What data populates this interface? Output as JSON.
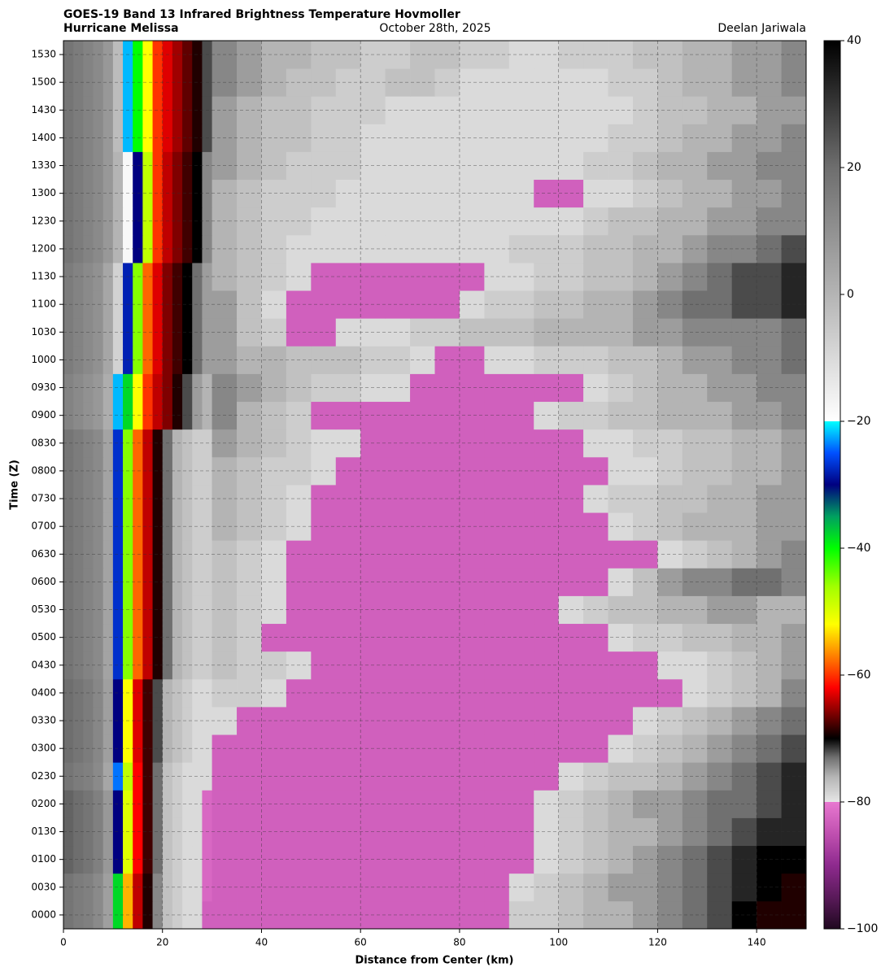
{
  "chart_data": {
    "type": "heatmap",
    "title": "GOES-19 Band 13 Infrared Brightness Temperature Hovmoller",
    "subtitle": "Hurricane Melissa",
    "date": "October 28th, 2025",
    "author": "Deelan Jariwala",
    "xlabel": "Distance from Center (km)",
    "ylabel": "Time (Z)",
    "categories": [
      "0000",
      "0030",
      "0100",
      "0130",
      "0200",
      "0230",
      "0300",
      "0330",
      "0400",
      "0430",
      "0500",
      "0530",
      "0600",
      "0630",
      "0700",
      "0730",
      "0800",
      "0830",
      "0900",
      "0930",
      "1000",
      "1030",
      "1100",
      "1130",
      "1200",
      "1230",
      "1300",
      "1330",
      "1400",
      "1430",
      "1500",
      "1530"
    ],
    "x_edges": [
      0,
      2,
      4,
      6,
      8,
      10,
      12,
      14,
      16,
      18,
      20,
      22,
      24,
      26,
      28,
      30,
      35,
      40,
      45,
      50,
      55,
      60,
      65,
      70,
      75,
      80,
      85,
      90,
      95,
      100,
      105,
      110,
      115,
      120,
      125,
      130,
      135,
      140,
      145,
      150
    ],
    "xlim": [
      0,
      150
    ],
    "xticks": [
      0,
      20,
      40,
      60,
      80,
      100,
      120,
      140
    ],
    "grid": true,
    "z": [
      [
        18,
        16,
        15,
        12,
        6,
        -38,
        -55,
        -64,
        -69,
        -74,
        -77,
        -78,
        -79,
        -79,
        -83,
        -83,
        -83,
        -83,
        -83,
        -83,
        -83,
        -83,
        -83,
        -83,
        -83,
        -83,
        -83,
        -78,
        -78,
        -77,
        -76,
        -76,
        -75,
        -74,
        -73,
        -72,
        -70,
        -69,
        -69
      ],
      [
        18,
        16,
        15,
        12,
        6,
        -38,
        -55,
        -64,
        -69,
        -74,
        -77,
        -78,
        -79,
        -79,
        -82,
        -83,
        -83,
        -83,
        -83,
        -83,
        -83,
        -83,
        -83,
        -83,
        -83,
        -83,
        -83,
        -79,
        -78,
        -77,
        -76,
        -75,
        -75,
        -74,
        -73,
        -72,
        -71,
        -70,
        -69
      ],
      [
        22,
        20,
        18,
        15,
        8,
        -30,
        -50,
        -62,
        -68,
        -73,
        -77,
        -78,
        -79,
        -79,
        -82,
        -83,
        -83,
        -83,
        -83,
        -83,
        -83,
        -83,
        -83,
        -83,
        -83,
        -83,
        -83,
        -83,
        -79,
        -78,
        -77,
        -76,
        -75,
        -74,
        -73,
        -72,
        -71,
        -70,
        -70
      ],
      [
        22,
        20,
        18,
        15,
        8,
        -30,
        -50,
        -62,
        -68,
        -73,
        -77,
        -78,
        -79,
        -79,
        -82,
        -83,
        -83,
        -83,
        -83,
        -83,
        -83,
        -83,
        -83,
        -83,
        -83,
        -83,
        -83,
        -83,
        -79,
        -78,
        -77,
        -76,
        -76,
        -75,
        -74,
        -73,
        -72,
        -71,
        -71
      ],
      [
        22,
        20,
        18,
        15,
        8,
        -30,
        -50,
        -62,
        -68,
        -73,
        -77,
        -78,
        -79,
        -79,
        -82,
        -83,
        -83,
        -83,
        -83,
        -83,
        -83,
        -83,
        -83,
        -83,
        -83,
        -83,
        -83,
        -83,
        -79,
        -78,
        -77,
        -76,
        -75,
        -75,
        -74,
        -73,
        -73,
        -72,
        -71
      ],
      [
        18,
        16,
        15,
        12,
        4,
        -24,
        -48,
        -62,
        -68,
        -73,
        -77,
        -78,
        -79,
        -79,
        -79,
        -83,
        -83,
        -83,
        -83,
        -83,
        -83,
        -83,
        -83,
        -83,
        -83,
        -83,
        -83,
        -83,
        -83,
        -79,
        -78,
        -77,
        -77,
        -76,
        -75,
        -74,
        -73,
        -72,
        -71
      ],
      [
        20,
        18,
        16,
        13,
        6,
        -30,
        -52,
        -63,
        -68,
        -72,
        -76,
        -77,
        -78,
        -79,
        -79,
        -83,
        -83,
        -83,
        -83,
        -83,
        -83,
        -83,
        -83,
        -83,
        -83,
        -83,
        -83,
        -83,
        -83,
        -83,
        -83,
        -79,
        -78,
        -77,
        -76,
        -75,
        -74,
        -73,
        -72
      ],
      [
        20,
        18,
        16,
        13,
        6,
        -30,
        -52,
        -63,
        -68,
        -72,
        -76,
        -77,
        -78,
        -79,
        -79,
        -79,
        -83,
        -83,
        -83,
        -83,
        -83,
        -83,
        -83,
        -83,
        -83,
        -83,
        -83,
        -83,
        -83,
        -83,
        -83,
        -83,
        -79,
        -78,
        -77,
        -76,
        -75,
        -74,
        -73
      ],
      [
        20,
        18,
        16,
        13,
        6,
        -30,
        -52,
        -63,
        -68,
        -72,
        -76,
        -77,
        -78,
        -79,
        -79,
        -78,
        -78,
        -79,
        -83,
        -83,
        -83,
        -83,
        -83,
        -83,
        -83,
        -83,
        -83,
        -83,
        -83,
        -83,
        -83,
        -83,
        -83,
        -83,
        -79,
        -78,
        -77,
        -76,
        -74
      ],
      [
        18,
        16,
        14,
        12,
        5,
        -27,
        -45,
        -58,
        -64,
        -69,
        -73,
        -76,
        -77,
        -78,
        -78,
        -77,
        -78,
        -78,
        -79,
        -83,
        -83,
        -83,
        -83,
        -83,
        -83,
        -83,
        -83,
        -83,
        -83,
        -83,
        -83,
        -83,
        -83,
        -79,
        -79,
        -78,
        -77,
        -76,
        -75
      ],
      [
        18,
        16,
        14,
        12,
        5,
        -27,
        -45,
        -58,
        -64,
        -69,
        -73,
        -76,
        -77,
        -78,
        -78,
        -77,
        -78,
        -83,
        -83,
        -83,
        -83,
        -83,
        -83,
        -83,
        -83,
        -83,
        -83,
        -83,
        -83,
        -83,
        -83,
        -79,
        -78,
        -78,
        -77,
        -77,
        -76,
        -76,
        -75
      ],
      [
        18,
        16,
        14,
        12,
        5,
        -27,
        -45,
        -58,
        -64,
        -69,
        -73,
        -76,
        -77,
        -78,
        -78,
        -77,
        -78,
        -79,
        -83,
        -83,
        -83,
        -83,
        -83,
        -83,
        -83,
        -83,
        -83,
        -83,
        -83,
        -79,
        -78,
        -77,
        -77,
        -76,
        -76,
        -75,
        -75,
        -76,
        -76
      ],
      [
        18,
        16,
        14,
        12,
        5,
        -27,
        -45,
        -58,
        -64,
        -69,
        -73,
        -76,
        -77,
        -78,
        -78,
        -77,
        -78,
        -79,
        -83,
        -83,
        -83,
        -83,
        -83,
        -83,
        -83,
        -83,
        -83,
        -83,
        -83,
        -83,
        -83,
        -79,
        -77,
        -75,
        -74,
        -74,
        -73,
        -73,
        -74
      ],
      [
        18,
        16,
        14,
        12,
        5,
        -27,
        -45,
        -58,
        -64,
        -69,
        -73,
        -76,
        -77,
        -78,
        -78,
        -77,
        -78,
        -79,
        -83,
        -83,
        -83,
        -83,
        -83,
        -83,
        -83,
        -83,
        -83,
        -83,
        -83,
        -83,
        -83,
        -83,
        -83,
        -79,
        -78,
        -77,
        -76,
        -75,
        -74
      ],
      [
        18,
        16,
        14,
        12,
        5,
        -27,
        -45,
        -58,
        -64,
        -69,
        -73,
        -76,
        -77,
        -78,
        -78,
        -76,
        -77,
        -78,
        -79,
        -83,
        -83,
        -83,
        -83,
        -83,
        -83,
        -83,
        -83,
        -83,
        -83,
        -83,
        -83,
        -79,
        -78,
        -77,
        -76,
        -76,
        -76,
        -75,
        -75
      ],
      [
        18,
        16,
        14,
        12,
        5,
        -27,
        -45,
        -58,
        -64,
        -69,
        -73,
        -76,
        -77,
        -78,
        -78,
        -76,
        -77,
        -78,
        -79,
        -83,
        -83,
        -83,
        -83,
        -83,
        -83,
        -83,
        -83,
        -83,
        -83,
        -83,
        -79,
        -78,
        -78,
        -77,
        -77,
        -76,
        -76,
        -75,
        -75
      ],
      [
        18,
        16,
        14,
        12,
        5,
        -27,
        -45,
        -58,
        -64,
        -69,
        -73,
        -76,
        -77,
        -78,
        -78,
        -76,
        -77,
        -78,
        -78,
        -79,
        -83,
        -83,
        -83,
        -83,
        -83,
        -83,
        -83,
        -83,
        -83,
        -83,
        -83,
        -79,
        -79,
        -78,
        -77,
        -77,
        -76,
        -76,
        -75
      ],
      [
        18,
        16,
        14,
        12,
        5,
        -27,
        -45,
        -58,
        -64,
        -69,
        -73,
        -76,
        -77,
        -78,
        -78,
        -75,
        -76,
        -77,
        -78,
        -79,
        -79,
        -83,
        -83,
        -83,
        -83,
        -83,
        -83,
        -83,
        -83,
        -83,
        -79,
        -79,
        -78,
        -78,
        -77,
        -77,
        -76,
        -76,
        -75
      ],
      [
        14,
        12,
        10,
        8,
        2,
        -22,
        -38,
        -52,
        -60,
        -64,
        -66,
        -69,
        -72,
        -75,
        -76,
        -74,
        -76,
        -77,
        -78,
        -83,
        -83,
        -83,
        -83,
        -83,
        -83,
        -83,
        -83,
        -83,
        -79,
        -78,
        -78,
        -77,
        -77,
        -76,
        -76,
        -76,
        -75,
        -75,
        -74
      ],
      [
        14,
        12,
        10,
        8,
        2,
        -22,
        -38,
        -52,
        -60,
        -64,
        -66,
        -69,
        -72,
        -75,
        -76,
        -74,
        -75,
        -76,
        -77,
        -78,
        -78,
        -79,
        -79,
        -83,
        -83,
        -83,
        -83,
        -83,
        -83,
        -83,
        -79,
        -78,
        -77,
        -76,
        -76,
        -75,
        -75,
        -74,
        -74
      ],
      [
        16,
        14,
        12,
        10,
        4,
        -8,
        -28,
        -45,
        -58,
        -63,
        -66,
        -68,
        -70,
        -73,
        -75,
        -75,
        -76,
        -76,
        -77,
        -77,
        -77,
        -78,
        -78,
        -79,
        -83,
        -83,
        -79,
        -79,
        -78,
        -78,
        -78,
        -77,
        -77,
        -76,
        -75,
        -75,
        -74,
        -74,
        -73
      ],
      [
        16,
        14,
        12,
        10,
        4,
        -8,
        -28,
        -45,
        -58,
        -63,
        -66,
        -68,
        -70,
        -73,
        -75,
        -75,
        -77,
        -78,
        -83,
        -83,
        -79,
        -79,
        -79,
        -78,
        -78,
        -77,
        -77,
        -77,
        -76,
        -76,
        -76,
        -76,
        -75,
        -75,
        -74,
        -74,
        -74,
        -74,
        -73
      ],
      [
        16,
        14,
        12,
        10,
        4,
        -8,
        -28,
        -45,
        -58,
        -63,
        -66,
        -68,
        -70,
        -73,
        -75,
        -75,
        -77,
        -79,
        -83,
        -83,
        -83,
        -83,
        -83,
        -83,
        -83,
        -79,
        -78,
        -78,
        -77,
        -77,
        -76,
        -76,
        -75,
        -74,
        -73,
        -73,
        -72,
        -72,
        -71
      ],
      [
        16,
        14,
        12,
        10,
        4,
        -8,
        -28,
        -45,
        -58,
        -63,
        -66,
        -68,
        -70,
        -73,
        -75,
        -76,
        -77,
        -78,
        -79,
        -83,
        -83,
        -83,
        -83,
        -83,
        -83,
        -83,
        -79,
        -79,
        -78,
        -78,
        -77,
        -77,
        -76,
        -75,
        -74,
        -73,
        -72,
        -72,
        -71
      ],
      [
        18,
        16,
        14,
        12,
        8,
        0,
        -18,
        -30,
        -48,
        -60,
        -64,
        -66,
        -68,
        -70,
        -74,
        -76,
        -77,
        -78,
        -79,
        -79,
        -79,
        -79,
        -79,
        -79,
        -79,
        -79,
        -79,
        -78,
        -78,
        -78,
        -77,
        -77,
        -76,
        -76,
        -75,
        -74,
        -74,
        -73,
        -72
      ],
      [
        18,
        16,
        14,
        12,
        8,
        0,
        -18,
        -30,
        -48,
        -60,
        -64,
        -66,
        -68,
        -70,
        -74,
        -76,
        -77,
        -78,
        -78,
        -79,
        -79,
        -79,
        -79,
        -79,
        -79,
        -79,
        -79,
        -79,
        -79,
        -79,
        -78,
        -77,
        -77,
        -76,
        -76,
        -75,
        -75,
        -74,
        -74
      ],
      [
        18,
        16,
        14,
        12,
        8,
        0,
        -18,
        -30,
        -48,
        -60,
        -64,
        -66,
        -68,
        -70,
        -74,
        -76,
        -77,
        -78,
        -78,
        -78,
        -79,
        -79,
        -79,
        -79,
        -79,
        -79,
        -79,
        -79,
        -83,
        -83,
        -79,
        -79,
        -78,
        -77,
        -76,
        -76,
        -75,
        -75,
        -74
      ],
      [
        18,
        16,
        14,
        12,
        8,
        0,
        -18,
        -30,
        -48,
        -60,
        -64,
        -66,
        -68,
        -70,
        -74,
        -75,
        -76,
        -77,
        -78,
        -78,
        -78,
        -79,
        -79,
        -79,
        -79,
        -79,
        -79,
        -79,
        -79,
        -79,
        -78,
        -78,
        -77,
        -76,
        -76,
        -75,
        -75,
        -74,
        -74
      ],
      [
        18,
        16,
        14,
        12,
        8,
        -2,
        -22,
        -40,
        -52,
        -60,
        -63,
        -65,
        -67,
        -69,
        -72,
        -75,
        -76,
        -77,
        -77,
        -78,
        -78,
        -79,
        -79,
        -79,
        -79,
        -79,
        -79,
        -79,
        -79,
        -79,
        -79,
        -78,
        -78,
        -77,
        -76,
        -76,
        -75,
        -75,
        -74
      ],
      [
        18,
        16,
        14,
        12,
        8,
        -2,
        -22,
        -40,
        -52,
        -60,
        -63,
        -65,
        -67,
        -69,
        -72,
        -75,
        -76,
        -77,
        -77,
        -78,
        -78,
        -78,
        -79,
        -79,
        -79,
        -79,
        -79,
        -79,
        -79,
        -79,
        -79,
        -79,
        -78,
        -77,
        -77,
        -76,
        -76,
        -75,
        -75
      ],
      [
        18,
        16,
        14,
        12,
        8,
        -2,
        -22,
        -40,
        -52,
        -60,
        -63,
        -65,
        -67,
        -69,
        -72,
        -74,
        -75,
        -76,
        -77,
        -77,
        -78,
        -78,
        -77,
        -77,
        -78,
        -79,
        -79,
        -79,
        -79,
        -79,
        -79,
        -78,
        -78,
        -77,
        -76,
        -76,
        -75,
        -75,
        -74
      ],
      [
        18,
        16,
        14,
        12,
        8,
        -2,
        -22,
        -40,
        -52,
        -60,
        -63,
        -65,
        -67,
        -69,
        -72,
        -74,
        -75,
        -76,
        -76,
        -77,
        -77,
        -78,
        -78,
        -77,
        -77,
        -78,
        -78,
        -79,
        -79,
        -78,
        -78,
        -78,
        -77,
        -77,
        -76,
        -76,
        -75,
        -75,
        -74
      ]
    ],
    "colorscale": [
      [
        -100,
        "#200820"
      ],
      [
        -95,
        "#5a1a5a"
      ],
      [
        -90,
        "#8e2a8e"
      ],
      [
        -85,
        "#c050b0"
      ],
      [
        -80,
        "#e878d0"
      ],
      [
        -80,
        "#e6e6e6"
      ],
      [
        -76,
        "#b4b4b4"
      ],
      [
        -73,
        "#707070"
      ],
      [
        -70,
        "#000000"
      ],
      [
        -66,
        "#800000"
      ],
      [
        -62,
        "#ff0000"
      ],
      [
        -57,
        "#ff8000"
      ],
      [
        -52,
        "#ffff00"
      ],
      [
        -46,
        "#a0ff00"
      ],
      [
        -40,
        "#00ff00"
      ],
      [
        -35,
        "#00a060"
      ],
      [
        -30,
        "#000080"
      ],
      [
        -25,
        "#0050ff"
      ],
      [
        -20,
        "#00ffff"
      ],
      [
        -20,
        "#ffffff"
      ],
      [
        0,
        "#b4b4b4"
      ],
      [
        20,
        "#6e6e6e"
      ],
      [
        40,
        "#000000"
      ]
    ],
    "clim": [
      -100,
      40
    ],
    "cticks": [
      {
        "value": -100,
        "label": "−100"
      },
      {
        "value": -80,
        "label": "−80"
      },
      {
        "value": -60,
        "label": "−60"
      },
      {
        "value": -40,
        "label": "−40"
      },
      {
        "value": -20,
        "label": "−20"
      },
      0,
      20,
      40
    ]
  }
}
